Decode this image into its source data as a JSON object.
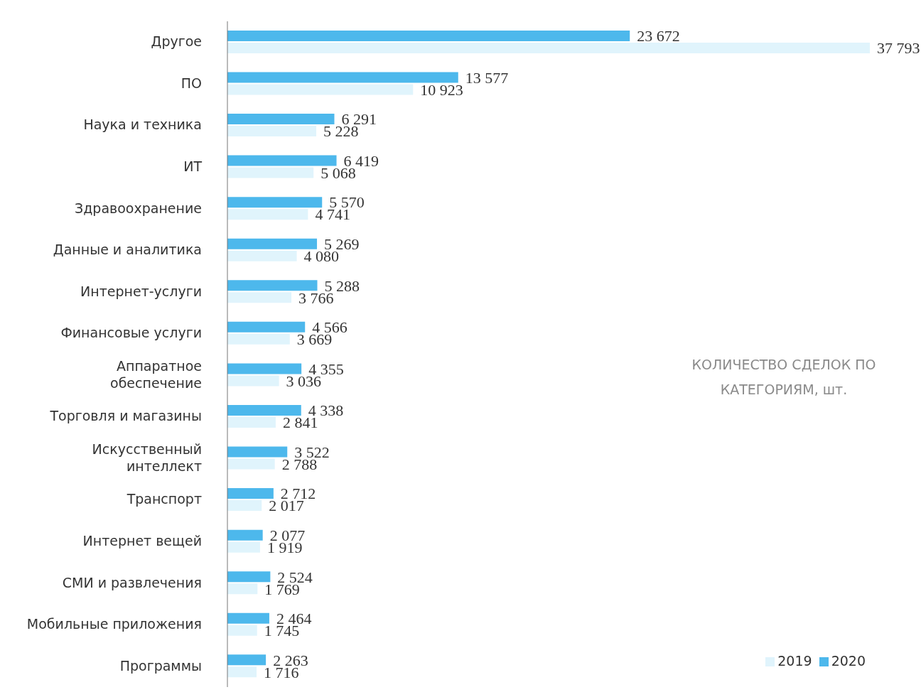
{
  "chart_data": {
    "type": "bar",
    "orientation": "horizontal",
    "title": "КОЛИЧЕСТВО СДЕЛОК ПО КАТЕГОРИЯМ, шт.",
    "legend": "bottom right",
    "grid": false,
    "categories": [
      "Другое",
      "ПО",
      "Наука и техника",
      "ИТ",
      "Здравоохранение",
      "Данные и аналитика",
      "Интернет-услуги",
      "Финансовые услуги",
      "Аппаратное обеспечение",
      "Торговля и магазины",
      "Искусственный интеллект",
      "Транспорт",
      "Интернет вещей",
      "СМИ и развлечения",
      "Мобильные приложения",
      "Программы"
    ],
    "series": [
      {
        "name": "2020",
        "color": "#4db8ec",
        "values": [
          23672,
          13577,
          6291,
          6419,
          5570,
          5269,
          5288,
          4566,
          4355,
          4338,
          3522,
          2712,
          2077,
          2524,
          2464,
          2263
        ],
        "value_labels": [
          "23 672",
          "13 577",
          "6 291",
          "6 419",
          "5 570",
          "5 269",
          "5 288",
          "4 566",
          "4 355",
          "4 338",
          "3 522",
          "2 712",
          "2 077",
          "2 524",
          "2 464",
          "2 263"
        ]
      },
      {
        "name": "2019",
        "color": "#e0f4fc",
        "values": [
          37793,
          10923,
          5228,
          5068,
          4741,
          4080,
          3766,
          3669,
          3036,
          2841,
          2788,
          2017,
          1919,
          1769,
          1745,
          1716
        ],
        "value_labels": [
          "37 793",
          "10 923",
          "5 228",
          "5 068",
          "4 741",
          "4 080",
          "3 766",
          "3 669",
          "3 036",
          "2 841",
          "2 788",
          "2 017",
          "1 919",
          "1 769",
          "1 745",
          "1 716"
        ]
      }
    ]
  }
}
